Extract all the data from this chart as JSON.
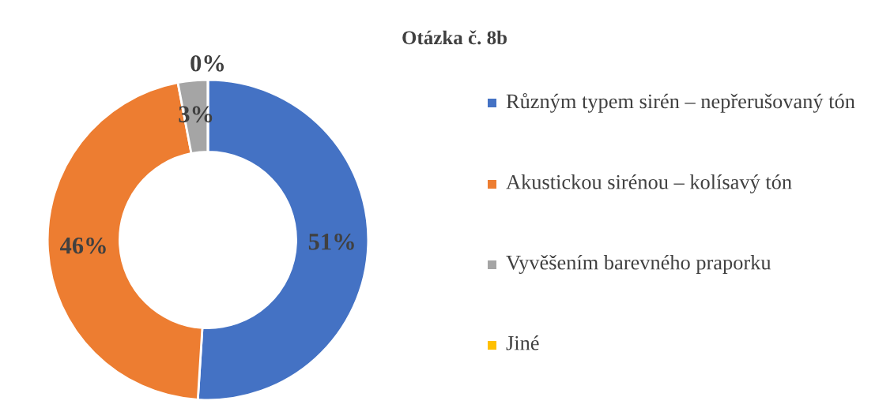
{
  "chart_data": {
    "type": "donut",
    "title": "Otázka č. 8b",
    "categories": [
      "Různým typem sirén – nepřerušovaný tón",
      "Akustickou sirénou – kolísavý tón",
      "Vyvěšením barevného praporku",
      "Jiné"
    ],
    "values": [
      51,
      46,
      3,
      0
    ],
    "colors": [
      "#4472c4",
      "#ed7d31",
      "#a5a5a5",
      "#ffc000"
    ],
    "value_labels": [
      "51%",
      "46%",
      "3%",
      "0%"
    ],
    "legend": "right"
  }
}
